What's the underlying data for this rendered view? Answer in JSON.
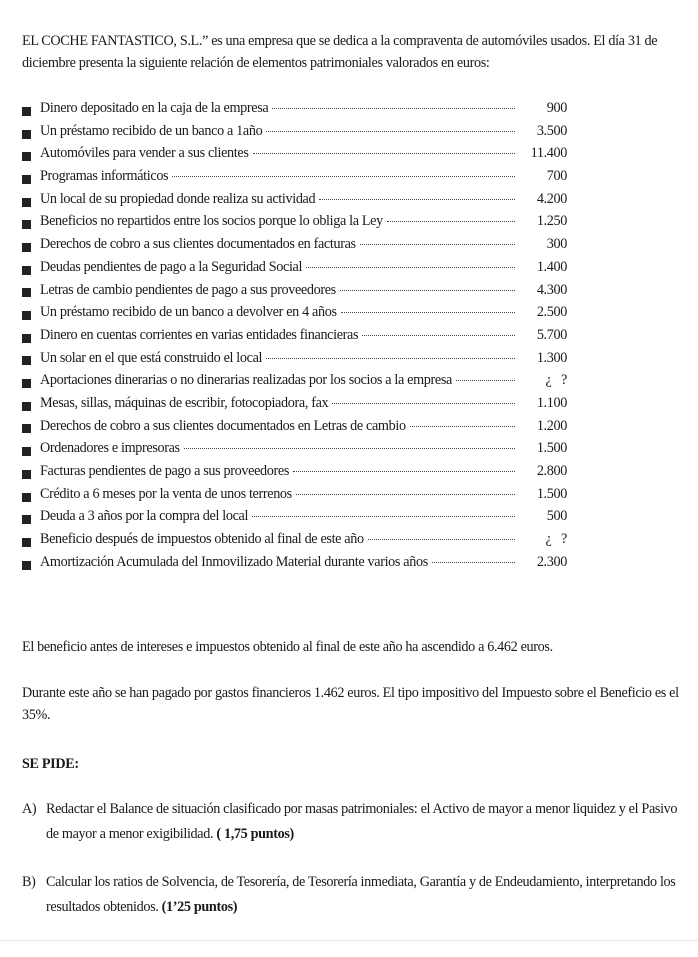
{
  "intro": "EL COCHE FANTASTICO, S.L.” es una empresa que se dedica a la compraventa de automóviles usados. El día 31 de diciembre presenta la siguiente relación de elementos patrimoniales valorados en euros:",
  "items": [
    {
      "label": "Dinero depositado en la caja de la empresa",
      "amount": "900"
    },
    {
      "label": "Un préstamo recibido de un banco a 1año",
      "amount": "3.500"
    },
    {
      "label": "Automóviles para vender a sus clientes",
      "amount": "11.400"
    },
    {
      "label": "Programas informáticos",
      "amount": "700"
    },
    {
      "label": "Un local de su propiedad donde realiza su actividad",
      "amount": "4.200"
    },
    {
      "label": "Beneficios no repartidos entre los socios porque lo obliga la Ley",
      "amount": "1.250"
    },
    {
      "label": "Derechos de cobro a sus clientes documentados en  facturas",
      "amount": "300"
    },
    {
      "label": "Deudas pendientes de pago a la Seguridad Social",
      "amount": "1.400"
    },
    {
      "label": "Letras de cambio pendientes de pago a sus proveedores",
      "amount": "4.300"
    },
    {
      "label": "Un préstamo recibido de un banco a devolver en 4 años",
      "amount": "2.500"
    },
    {
      "label": "Dinero en cuentas corrientes en varias entidades financieras",
      "amount": "5.700"
    },
    {
      "label": "Un solar en el que está construido el local",
      "amount": "1.300"
    },
    {
      "label": "Aportaciones dinerarias o no dinerarias realizadas por los socios a la empresa",
      "amount": "¿   ?"
    },
    {
      "label": "Mesas, sillas, máquinas de escribir, fotocopiadora, fax",
      "amount": "1.100"
    },
    {
      "label": "Derechos de cobro a sus clientes documentados en Letras de cambio",
      "amount": "1.200"
    },
    {
      "label": "Ordenadores e impresoras",
      "amount": "1.500"
    },
    {
      "label": "Facturas pendientes de pago a sus proveedores",
      "amount": "2.800"
    },
    {
      "label": "Crédito a  6 meses por la venta de unos terrenos",
      "amount": "1.500"
    },
    {
      "label": "Deuda a 3 años por la compra del local",
      "amount": "500"
    },
    {
      "label": "Beneficio después de impuestos obtenido al final de este año",
      "amount": "¿   ?"
    },
    {
      "label": "Amortización Acumulada del Inmovilizado Material durante varios años",
      "amount": "2.300"
    }
  ],
  "paragraphs": [
    "El beneficio antes de intereses e impuestos obtenido al final de este año ha ascendido a 6.462  euros.",
    "Durante este año se han pagado por gastos financieros 1.462  euros. El tipo impositivo del Impuesto sobre el Beneficio es el 35%."
  ],
  "heading": "SE PIDE:",
  "tasks": [
    {
      "letter": "A)",
      "text": "Redactar el Balance de situación clasificado por masas patrimoniales: el Activo de mayor a menor liquidez y el Pasivo de mayor a menor exigibilidad.",
      "points": "( 1,75 puntos)"
    },
    {
      "letter": "B)",
      "text": "Calcular los ratios de Solvencia, de Tesorería, de Tesorería inmediata, Garantía y de Endeudamiento, interpretando los resultados obtenidos.",
      "points": "(1’25 puntos)"
    }
  ]
}
